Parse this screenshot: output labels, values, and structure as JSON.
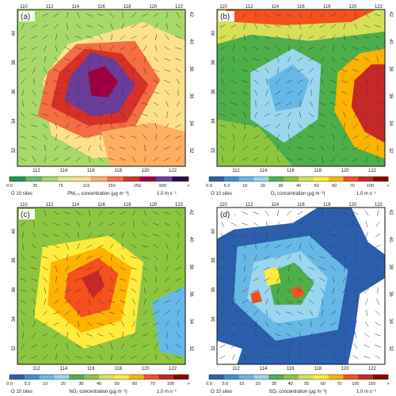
{
  "panels": [
    {
      "label": "(a)",
      "top_ticks": [
        "110",
        "112",
        "114",
        "116",
        "118",
        "120",
        "122"
      ],
      "bottom_ticks": [
        "112",
        "114",
        "116",
        "118",
        "120",
        "122"
      ],
      "left_ticks": [
        "40",
        "38",
        "36",
        "34",
        "32"
      ],
      "right_ticks": [
        "42",
        "40",
        "38",
        "36",
        "34",
        "32"
      ],
      "colorbar_ticks": [
        "0.0",
        "35",
        "75",
        "115",
        "150",
        "250",
        "500",
        ">"
      ],
      "colorbar_colors": [
        "#1a9850",
        "#66bd63",
        "#a6d96a",
        "#d9ef8b",
        "#fee08b",
        "#fdae61",
        "#f46d43",
        "#d73027",
        "#9e0142",
        "#6a3d9a",
        "#2d0a4e"
      ],
      "legend_sites": "O 10 sites",
      "quantity": "PM₂.₅ concentration (μg m⁻³)",
      "wind_ref": "1.0 m s⁻¹",
      "base_color": "#a6d96a"
    },
    {
      "label": "(b)",
      "top_ticks": [
        "110",
        "112",
        "114",
        "116",
        "118",
        "120",
        "122"
      ],
      "bottom_ticks": [
        "112",
        "114",
        "116",
        "118",
        "120",
        "122"
      ],
      "left_ticks": [
        "40",
        "38",
        "36",
        "34",
        "32"
      ],
      "right_ticks": [
        "42",
        "40",
        "38",
        "36",
        "34",
        "32"
      ],
      "colorbar_ticks": [
        "0.0",
        "5.0",
        "10",
        "20",
        "30",
        "40",
        "50",
        "60",
        "70",
        "100",
        ">"
      ],
      "colorbar_colors": [
        "#2b5fad",
        "#3f8fd6",
        "#66b9e6",
        "#9bd6ef",
        "#4daf4a",
        "#8cc63f",
        "#d4e157",
        "#ffeb3b",
        "#ffb300",
        "#f4511e",
        "#c62828",
        "#8b0000"
      ],
      "legend_sites": "O 10 sites",
      "quantity": "O₃ concentration (μg m⁻³)",
      "wind_ref": "1.0 m s⁻¹",
      "base_color": "#4daf4a"
    },
    {
      "label": "(c)",
      "top_ticks": [
        "110",
        "112",
        "114",
        "116",
        "118",
        "120",
        "122"
      ],
      "bottom_ticks": [
        "112",
        "114",
        "116",
        "118",
        "120",
        "122"
      ],
      "left_ticks": [
        "40",
        "38",
        "36",
        "34",
        "32"
      ],
      "right_ticks": [
        "42",
        "40",
        "38",
        "36",
        "34",
        "32"
      ],
      "colorbar_ticks": [
        "0.0",
        "5.0",
        "10",
        "20",
        "30",
        "40",
        "50",
        "60",
        "70",
        "100",
        ">"
      ],
      "colorbar_colors": [
        "#2b5fad",
        "#3f8fd6",
        "#66b9e6",
        "#9bd6ef",
        "#4daf4a",
        "#8cc63f",
        "#d4e157",
        "#ffeb3b",
        "#ffb300",
        "#f4511e",
        "#c62828",
        "#8b0000"
      ],
      "legend_sites": "O 10 sites",
      "quantity": "NO₂ concentration (μg m⁻³)",
      "wind_ref": "1.0 m s⁻¹",
      "base_color": "#8cc63f"
    },
    {
      "label": "(d)",
      "top_ticks": [
        "110",
        "112",
        "114",
        "116",
        "118",
        "120",
        "122"
      ],
      "bottom_ticks": [
        "112",
        "114",
        "116",
        "118",
        "120",
        "122"
      ],
      "left_ticks": [
        "40",
        "38",
        "36",
        "34",
        "32"
      ],
      "right_ticks": [
        "42",
        "40",
        "38",
        "36",
        "34",
        "32"
      ],
      "colorbar_ticks": [
        "0.0",
        "5.0",
        "10",
        "20",
        "30",
        "40",
        "50",
        "60",
        "70",
        "100",
        "150",
        ">"
      ],
      "colorbar_colors": [
        "#2b5fad",
        "#3f8fd6",
        "#66b9e6",
        "#9bd6ef",
        "#4daf4a",
        "#8cc63f",
        "#d4e157",
        "#ffeb3b",
        "#ffb300",
        "#f4511e",
        "#c62828",
        "#8b0000"
      ],
      "legend_sites": "O 10 sites",
      "quantity": "SO₂ concentration (μg m⁻³)",
      "wind_ref": "1.0 m s⁻¹",
      "base_color": "#2b5fad"
    }
  ]
}
